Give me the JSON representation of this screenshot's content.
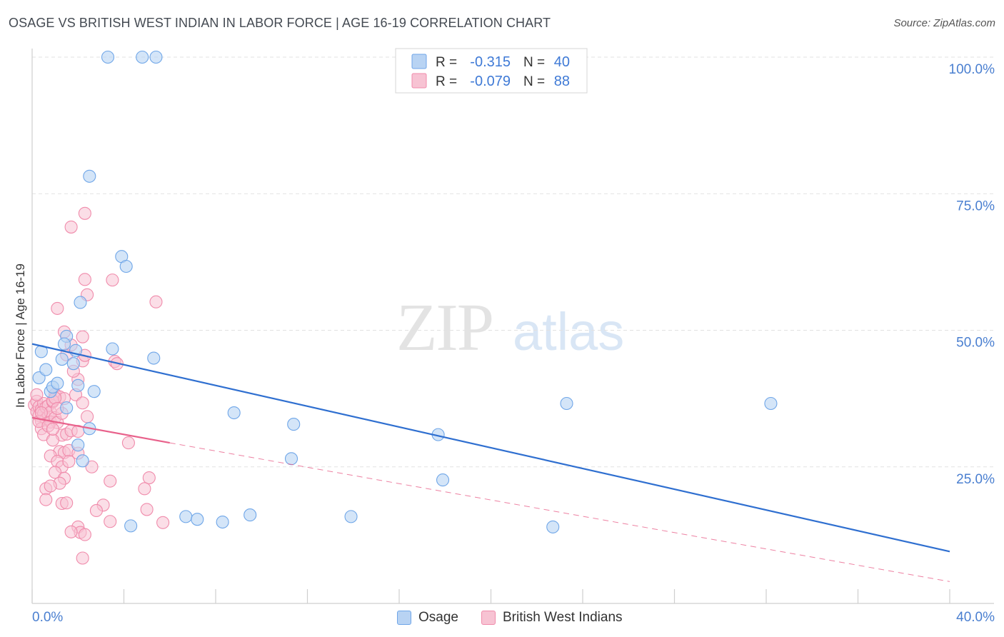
{
  "header": {
    "title": "OSAGE VS BRITISH WEST INDIAN IN LABOR FORCE | AGE 16-19 CORRELATION CHART",
    "source": "Source: ZipAtlas.com"
  },
  "watermark": {
    "zip": "ZIP",
    "atlas": "atlas"
  },
  "chart_data": {
    "type": "scatter",
    "title": "OSAGE VS BRITISH WEST INDIAN IN LABOR FORCE | AGE 16-19 CORRELATION CHART",
    "ylabel": "In Labor Force | Age 16-19",
    "xlabel": "",
    "xlim": [
      0,
      40
    ],
    "ylim": [
      0,
      100
    ],
    "x_tick_labels": [
      "0.0%",
      "40.0%"
    ],
    "y_tick_values": [
      25,
      50,
      75,
      100
    ],
    "y_tick_labels": [
      "25.0%",
      "50.0%",
      "75.0%",
      "100.0%"
    ],
    "grid": "horizontal dashed",
    "legend_placement": "top-center",
    "series": [
      {
        "name": "Osage",
        "color": "#6fa6e8",
        "fill": "#b8d3f3",
        "line_color": "#2f6fd0",
        "R": "-0.315",
        "N": "40",
        "trend": {
          "x0": 0,
          "y0": 47.5,
          "x1": 40,
          "y1": 9.5
        },
        "points": [
          [
            0.3,
            41.3
          ],
          [
            0.4,
            46.1
          ],
          [
            0.6,
            42.8
          ],
          [
            0.8,
            38.8
          ],
          [
            0.9,
            39.6
          ],
          [
            1.1,
            40.3
          ],
          [
            1.5,
            35.8
          ],
          [
            1.3,
            44.7
          ],
          [
            1.5,
            48.9
          ],
          [
            1.4,
            47.5
          ],
          [
            1.8,
            43.9
          ],
          [
            1.9,
            46.3
          ],
          [
            2.0,
            39.9
          ],
          [
            2.2,
            26.1
          ],
          [
            2.0,
            29.0
          ],
          [
            2.7,
            38.8
          ],
          [
            2.5,
            32.0
          ],
          [
            2.1,
            55.1
          ],
          [
            2.5,
            78.2
          ],
          [
            3.3,
            100
          ],
          [
            4.8,
            100
          ],
          [
            5.4,
            100
          ],
          [
            3.9,
            63.5
          ],
          [
            4.1,
            61.7
          ],
          [
            3.5,
            46.6
          ],
          [
            4.3,
            14.2
          ],
          [
            5.3,
            44.9
          ],
          [
            6.7,
            15.9
          ],
          [
            7.2,
            15.4
          ],
          [
            8.3,
            14.9
          ],
          [
            8.8,
            34.9
          ],
          [
            9.5,
            16.2
          ],
          [
            11.4,
            32.8
          ],
          [
            11.3,
            26.5
          ],
          [
            13.9,
            15.9
          ],
          [
            17.7,
            30.9
          ],
          [
            17.9,
            22.6
          ],
          [
            22.7,
            14.0
          ],
          [
            23.3,
            36.6
          ],
          [
            32.2,
            36.6
          ]
        ]
      },
      {
        "name": "British West Indians",
        "color": "#f08bab",
        "fill": "#f7c3d3",
        "line_color": "#e8618b",
        "R": "-0.079",
        "N": "88",
        "trend": {
          "x0": 0,
          "y0": 34.0,
          "x1": 6,
          "y1": 29.4
        },
        "trend_ext": {
          "x0": 6,
          "y0": 29.4,
          "x1": 40,
          "y1": 4.0
        },
        "points": [
          [
            0.1,
            36.3
          ],
          [
            0.2,
            35.1
          ],
          [
            0.2,
            37.0
          ],
          [
            0.3,
            34.4
          ],
          [
            0.3,
            36.0
          ],
          [
            0.4,
            33.4
          ],
          [
            0.4,
            35.5
          ],
          [
            0.5,
            34.7
          ],
          [
            0.5,
            36.6
          ],
          [
            0.6,
            33.8
          ],
          [
            0.6,
            35.9
          ],
          [
            0.7,
            34.2
          ],
          [
            0.7,
            36.2
          ],
          [
            0.8,
            35.0
          ],
          [
            0.8,
            33.2
          ],
          [
            0.2,
            38.2
          ],
          [
            0.4,
            32.0
          ],
          [
            0.5,
            30.9
          ],
          [
            0.9,
            36.9
          ],
          [
            1.0,
            34.0
          ],
          [
            1.0,
            38.3
          ],
          [
            1.1,
            33.1
          ],
          [
            1.2,
            37.8
          ],
          [
            1.3,
            34.8
          ],
          [
            1.3,
            30.8
          ],
          [
            0.9,
            29.9
          ],
          [
            1.2,
            27.8
          ],
          [
            1.4,
            27.6
          ],
          [
            1.5,
            31.0
          ],
          [
            1.6,
            28.0
          ],
          [
            0.8,
            27.0
          ],
          [
            1.1,
            26.0
          ],
          [
            1.3,
            25.0
          ],
          [
            1.6,
            26.0
          ],
          [
            1.7,
            31.6
          ],
          [
            1.0,
            24.0
          ],
          [
            1.4,
            22.9
          ],
          [
            1.2,
            22.0
          ],
          [
            0.6,
            21.0
          ],
          [
            0.8,
            21.5
          ],
          [
            1.3,
            18.3
          ],
          [
            1.5,
            18.4
          ],
          [
            1.9,
            38.2
          ],
          [
            2.2,
            36.7
          ],
          [
            1.4,
            37.5
          ],
          [
            2.0,
            41.0
          ],
          [
            1.8,
            42.5
          ],
          [
            2.2,
            44.4
          ],
          [
            2.3,
            45.4
          ],
          [
            1.5,
            45.5
          ],
          [
            1.7,
            47.3
          ],
          [
            2.2,
            48.8
          ],
          [
            1.4,
            49.7
          ],
          [
            1.1,
            54.0
          ],
          [
            2.4,
            56.5
          ],
          [
            2.3,
            59.3
          ],
          [
            3.5,
            59.2
          ],
          [
            1.7,
            68.9
          ],
          [
            2.3,
            71.4
          ],
          [
            3.6,
            44.3
          ],
          [
            3.7,
            43.9
          ],
          [
            2.4,
            34.2
          ],
          [
            2.0,
            31.5
          ],
          [
            2.0,
            27.5
          ],
          [
            2.6,
            25.0
          ],
          [
            3.4,
            22.4
          ],
          [
            5.1,
            23.0
          ],
          [
            4.9,
            21.0
          ],
          [
            5.0,
            17.2
          ],
          [
            3.1,
            18.0
          ],
          [
            2.8,
            17.0
          ],
          [
            2.0,
            14.0
          ],
          [
            2.1,
            13.0
          ],
          [
            2.3,
            12.6
          ],
          [
            1.7,
            13.1
          ],
          [
            3.4,
            15.0
          ],
          [
            4.2,
            29.4
          ],
          [
            5.4,
            55.2
          ],
          [
            5.7,
            14.8
          ],
          [
            2.2,
            8.3
          ],
          [
            0.6,
            19.0
          ],
          [
            0.9,
            37.1
          ],
          [
            1.0,
            37.6
          ],
          [
            0.3,
            33.3
          ],
          [
            0.4,
            34.9
          ],
          [
            0.7,
            32.5
          ],
          [
            1.1,
            35.7
          ],
          [
            0.9,
            31.9
          ]
        ]
      }
    ]
  }
}
